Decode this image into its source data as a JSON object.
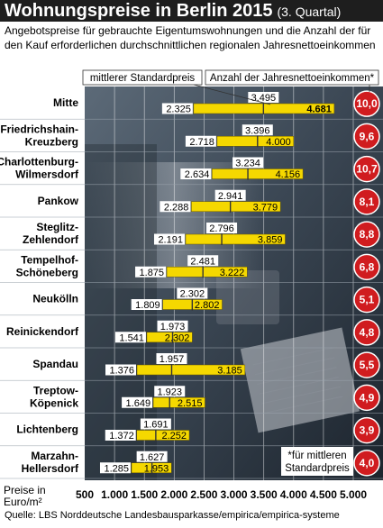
{
  "title": "Wohnungspreise in Berlin 2015",
  "title_note": "(3. Quartal)",
  "subtitle": "Angebotspreise für gebrauchte Eigentumswohnungen und die Anzahl der für den Kauf erforderlichen durchschnittlichen regionalen Jahresnettoeinkommen",
  "legend": {
    "median_label": "mittlerer Standardpreis",
    "income_label": "Anzahl der Jahresnettoeinkommen*"
  },
  "footnote": "*für mittleren Standardpreis",
  "axis_label": "Preise in Euro/m²",
  "source": "Quelle: LBS Norddeutsche Landesbausparkasse/empirica/empirica-systeme",
  "colors": {
    "bar": "#f5d800",
    "circle": "#d01c1f",
    "header": "#1e1e1e",
    "label_bg": "#ffffff"
  },
  "chart_data": {
    "type": "bar",
    "subtype": "range-with-median",
    "xlim": [
      500,
      5000
    ],
    "xticks": [
      "500",
      "1.000",
      "1.500",
      "2.000",
      "2.500",
      "3.000",
      "3.500",
      "4.000",
      "4.500",
      "5.000"
    ],
    "xtick_values": [
      500,
      1000,
      1500,
      2000,
      2500,
      3000,
      3500,
      4000,
      4500,
      5000
    ],
    "grid": true,
    "categories": [
      "Mitte",
      "Friedrichshain-Kreuzberg",
      "Charlottenburg-Wilmersdorf",
      "Pankow",
      "Steglitz-Zehlendorf",
      "Tempelhof-Schöneberg",
      "Neukölln",
      "Reinickendorf",
      "Spandau",
      "Treptow-Köpenick",
      "Lichtenberg",
      "Marzahn-Hellersdorf"
    ],
    "rows": [
      {
        "name_lines": [
          "Mitte"
        ],
        "min": 2325,
        "median": 3495,
        "max": 4681,
        "min_label": "2.325",
        "median_label": "3.495",
        "max_label": "4.681",
        "income": "10,0"
      },
      {
        "name_lines": [
          "Friedrichshain-",
          "Kreuzberg"
        ],
        "min": 2718,
        "median": 3396,
        "max": 4000,
        "min_label": "2.718",
        "median_label": "3.396",
        "max_label": "4.000",
        "income": "9,6"
      },
      {
        "name_lines": [
          "Charlottenburg-",
          "Wilmersdorf"
        ],
        "min": 2634,
        "median": 3234,
        "max": 4156,
        "min_label": "2.634",
        "median_label": "3.234",
        "max_label": "4.156",
        "income": "10,7"
      },
      {
        "name_lines": [
          "Pankow"
        ],
        "min": 2288,
        "median": 2941,
        "max": 3779,
        "min_label": "2.288",
        "median_label": "2.941",
        "max_label": "3.779",
        "income": "8,1"
      },
      {
        "name_lines": [
          "Steglitz-",
          "Zehlendorf"
        ],
        "min": 2191,
        "median": 2796,
        "max": 3859,
        "min_label": "2.191",
        "median_label": "2.796",
        "max_label": "3.859",
        "income": "8,8"
      },
      {
        "name_lines": [
          "Tempelhof-",
          "Schöneberg"
        ],
        "min": 1875,
        "median": 2481,
        "max": 3222,
        "min_label": "1.875",
        "median_label": "2.481",
        "max_label": "3.222",
        "income": "6,8"
      },
      {
        "name_lines": [
          "Neukölln"
        ],
        "min": 1809,
        "median": 2302,
        "max": 2802,
        "min_label": "1.809",
        "median_label": "2.302",
        "max_label": "2.802",
        "income": "5,1"
      },
      {
        "name_lines": [
          "Reinickendorf"
        ],
        "min": 1541,
        "median": 1973,
        "max": 2302,
        "min_label": "1.541",
        "median_label": "1.973",
        "max_label": "2.302",
        "income": "4,8"
      },
      {
        "name_lines": [
          "Spandau"
        ],
        "min": 1376,
        "median": 1957,
        "max": 3185,
        "min_label": "1.376",
        "median_label": "1.957",
        "max_label": "3.185",
        "income": "5,5"
      },
      {
        "name_lines": [
          "Treptow-",
          "Köpenick"
        ],
        "min": 1649,
        "median": 1923,
        "max": 2515,
        "min_label": "1.649",
        "median_label": "1.923",
        "max_label": "2.515",
        "income": "4,9"
      },
      {
        "name_lines": [
          "Lichtenberg"
        ],
        "min": 1372,
        "median": 1691,
        "max": 2252,
        "min_label": "1.372",
        "median_label": "1.691",
        "max_label": "2.252",
        "income": "3,9"
      },
      {
        "name_lines": [
          "Marzahn-",
          "Hellersdorf"
        ],
        "min": 1285,
        "median": 1627,
        "max": 1953,
        "min_label": "1.285",
        "median_label": "1.627",
        "max_label": "1.953",
        "income": "4,0"
      }
    ]
  }
}
